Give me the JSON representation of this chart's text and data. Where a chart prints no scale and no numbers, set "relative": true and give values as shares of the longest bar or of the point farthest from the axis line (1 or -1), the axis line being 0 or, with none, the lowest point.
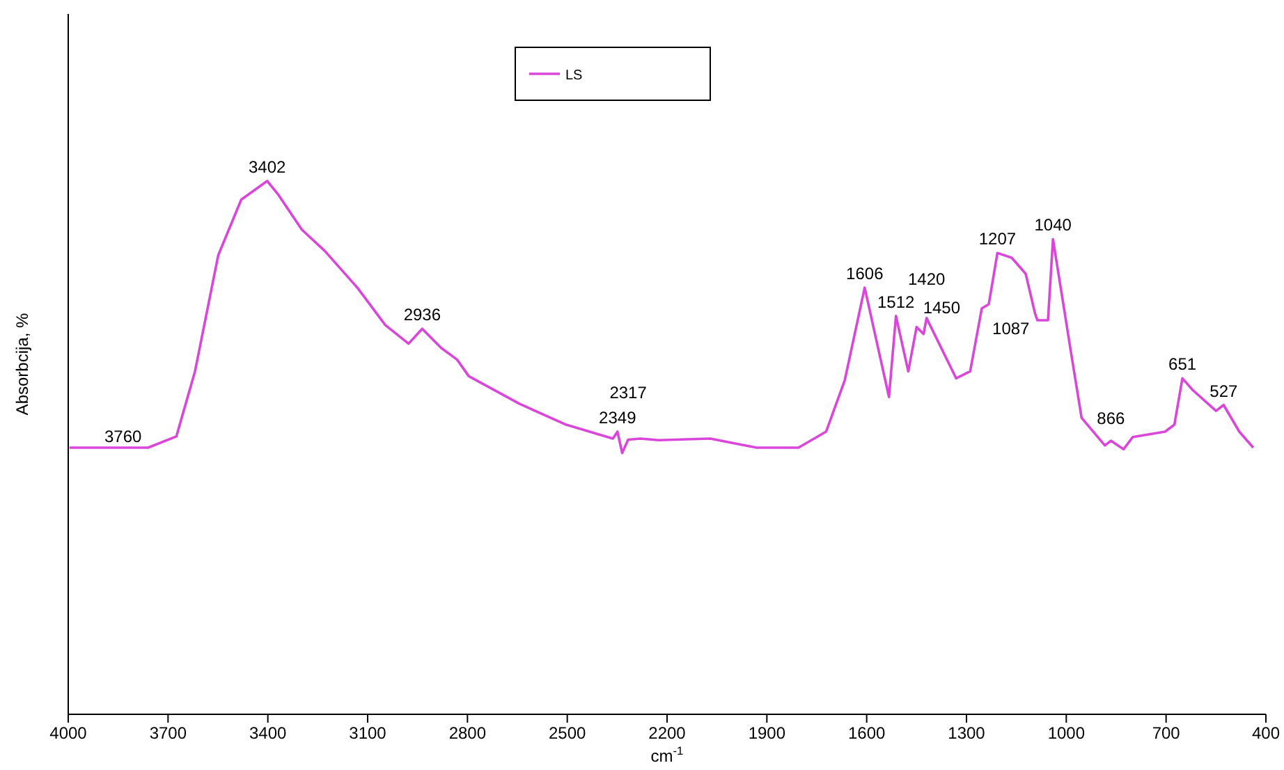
{
  "chart_data": {
    "type": "line",
    "relative": true,
    "xlabel": "cm$^{-1}$",
    "ylabel": "Absorbcija, %",
    "xlim": [
      4000,
      400
    ],
    "xticks": [
      4000,
      3700,
      3400,
      3100,
      2800,
      2500,
      2200,
      1900,
      1600,
      1300,
      1000,
      700,
      400
    ],
    "legend": "top",
    "marker": "none",
    "line_style": "solid",
    "series": [
      {
        "name": "LS",
        "color": "#d946d9",
        "x": [
          3996,
          3760,
          3675,
          3619,
          3549,
          3480,
          3402,
          3368,
          3298,
          3229,
          3131,
          3047,
          2977,
          2936,
          2879,
          2831,
          2796,
          2643,
          2503,
          2363,
          2349,
          2335,
          2317,
          2280,
          2225,
          2070,
          1931,
          1805,
          1722,
          1666,
          1606,
          1533,
          1512,
          1475,
          1450,
          1429,
          1420,
          1331,
          1289,
          1254,
          1233,
          1207,
          1164,
          1122,
          1094,
          1087,
          1055,
          1040,
          988,
          954,
          884,
          866,
          828,
          800,
          703,
          675,
          651,
          620,
          550,
          527,
          480,
          438
        ],
        "values": [
          0.5,
          0.5,
          0.521,
          0.643,
          0.861,
          0.965,
          1,
          0.974,
          0.909,
          0.869,
          0.8,
          0.73,
          0.695,
          0.723,
          0.687,
          0.665,
          0.634,
          0.582,
          0.543,
          0.517,
          0.53,
          0.49,
          0.515,
          0.517,
          0.514,
          0.517,
          0.5,
          0.5,
          0.53,
          0.626,
          0.8,
          0.595,
          0.747,
          0.643,
          0.726,
          0.713,
          0.743,
          0.63,
          0.643,
          0.761,
          0.769,
          0.865,
          0.856,
          0.826,
          0.752,
          0.739,
          0.739,
          0.891,
          0.687,
          0.556,
          0.504,
          0.513,
          0.497,
          0.52,
          0.53,
          0.543,
          0.63,
          0.608,
          0.569,
          0.58,
          0.53,
          0.5
        ]
      }
    ],
    "annotations": [
      {
        "text": "3760",
        "x": 3760,
        "y": 0.5
      },
      {
        "text": "3402",
        "x": 3402,
        "y": 1
      },
      {
        "text": "2936",
        "x": 2936,
        "y": 0.723
      },
      {
        "text": "2349",
        "x": 2349,
        "y": 0.53
      },
      {
        "text": "2317",
        "x": 2317,
        "y": 0.515
      },
      {
        "text": "1606",
        "x": 1606,
        "y": 0.8
      },
      {
        "text": "1512",
        "x": 1512,
        "y": 0.747
      },
      {
        "text": "1450",
        "x": 1450,
        "y": 0.726
      },
      {
        "text": "1420",
        "x": 1420,
        "y": 0.743
      },
      {
        "text": "1207",
        "x": 1207,
        "y": 0.865
      },
      {
        "text": "1087",
        "x": 1087,
        "y": 0.739
      },
      {
        "text": "1040",
        "x": 1040,
        "y": 0.891
      },
      {
        "text": "866",
        "x": 866,
        "y": 0.513
      },
      {
        "text": "651",
        "x": 651,
        "y": 0.63
      },
      {
        "text": "527",
        "x": 527,
        "y": 0.58
      }
    ]
  }
}
